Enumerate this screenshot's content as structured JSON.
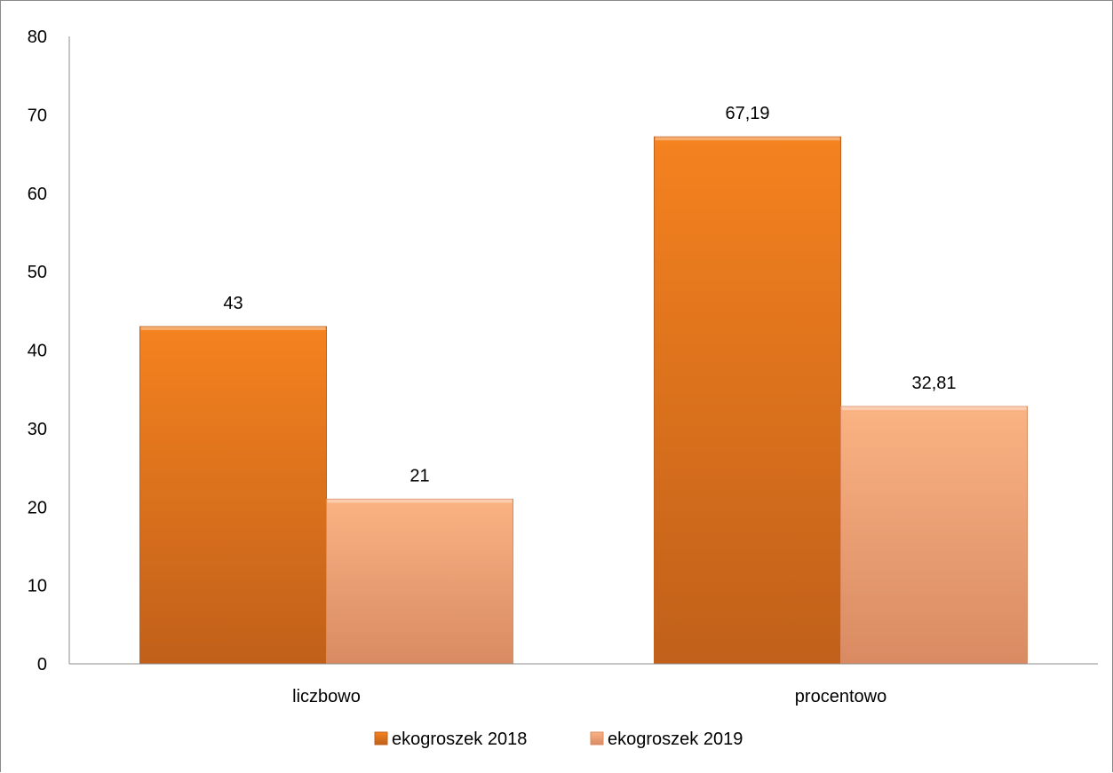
{
  "chart_data": {
    "type": "bar",
    "categories": [
      "liczbowo",
      "procentowo"
    ],
    "series": [
      {
        "name": "ekogroszek 2018",
        "values": [
          43,
          67.19
        ],
        "labels": [
          "43",
          "67,19"
        ],
        "color": "#f5821f",
        "color_dark": "#c0601a"
      },
      {
        "name": "ekogroszek 2019",
        "values": [
          21,
          32.81
        ],
        "labels": [
          "21",
          "32,81"
        ],
        "color": "#fab383",
        "color_dark": "#d98a62"
      }
    ],
    "ylim": [
      0,
      80
    ],
    "yticks": [
      0,
      10,
      20,
      30,
      40,
      50,
      60,
      70,
      80
    ],
    "title": "",
    "xlabel": "",
    "ylabel": "",
    "grid": false,
    "legend_position": "bottom"
  }
}
